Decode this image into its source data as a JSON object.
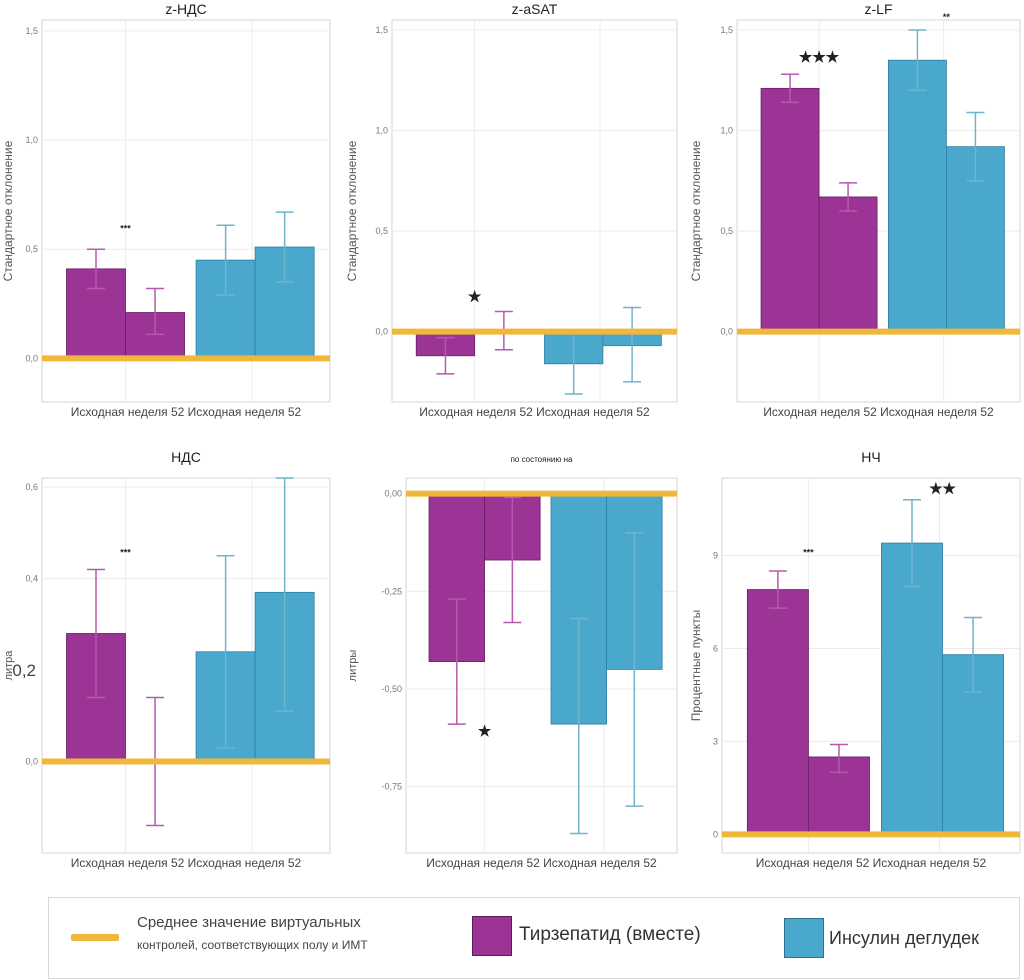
{
  "colors": {
    "tirzepatide": "#9b3494",
    "insulin": "#4aa8cd",
    "reference": "#f0b83a"
  },
  "legend": {
    "reference_line": "Среднее значение виртуальных",
    "reference_line_2": "контролей, соответствующих полу и ИМТ",
    "tirzepatide": "Тирзепатид (вместе)",
    "insulin": "Инсулин деглудек"
  },
  "chart_data": [
    {
      "type": "bar",
      "title": "z-НДС",
      "ylabel": "Стандартное отклонение",
      "ylim": [
        -0.2,
        1.55
      ],
      "yticks": [
        0,
        0.5,
        1.0,
        1.5
      ],
      "ytick_labels": [
        "0,0",
        "0,5",
        "1,0",
        "1,5"
      ],
      "x_label": "Исходная неделя 52 Исходная неделя 52",
      "reference_value": 0,
      "series": [
        {
          "name": "Тирзепатид (вместе)",
          "categories": [
            "Исходная",
            "неделя 52"
          ],
          "values": [
            0.41,
            0.21
          ],
          "err_low": [
            0.32,
            0.11
          ],
          "err_high": [
            0.5,
            0.32
          ]
        },
        {
          "name": "Инсулин деглудек",
          "categories": [
            "Исходная",
            "неделя 52"
          ],
          "values": [
            0.45,
            0.51
          ],
          "err_low": [
            0.29,
            0.35
          ],
          "err_high": [
            0.61,
            0.67
          ]
        }
      ],
      "annotations": [
        {
          "text": "***",
          "at_value": 0.58,
          "group": 0
        }
      ]
    },
    {
      "type": "bar",
      "title": "z-aSAT",
      "ylabel": "Стандартное отклонение",
      "ylim": [
        -0.35,
        1.55
      ],
      "yticks": [
        0,
        0.5,
        1.0,
        1.5
      ],
      "ytick_labels": [
        "0,0",
        "0,5",
        "1,0",
        "1,5"
      ],
      "x_label": "Исходная неделя 52 Исходная неделя 52",
      "reference_value": 0,
      "series": [
        {
          "name": "Тирзепатид (вместе)",
          "categories": [
            "Исходная",
            "неделя 52"
          ],
          "values": [
            -0.12,
            0
          ],
          "err_low": [
            -0.21,
            -0.09
          ],
          "err_high": [
            -0.03,
            0.1
          ]
        },
        {
          "name": "Инсулин деглудек",
          "categories": [
            "Исходная",
            "неделя 52"
          ],
          "values": [
            -0.16,
            -0.07
          ],
          "err_low": [
            -0.31,
            -0.25
          ],
          "err_high": [
            -0.01,
            0.12
          ]
        }
      ],
      "annotations": [
        {
          "text": "★",
          "at_value": 0.15,
          "group": 0
        }
      ]
    },
    {
      "type": "bar",
      "title": "z-LF",
      "ylabel": "Стандартное отклонение",
      "ylim": [
        -0.35,
        1.55
      ],
      "yticks": [
        0,
        0.5,
        1.0,
        1.5
      ],
      "ytick_labels": [
        "0,0",
        "0,5",
        "1,0",
        "1,5"
      ],
      "x_label": "Исходная неделя 52 Исходная неделя 52",
      "reference_value": 0,
      "series": [
        {
          "name": "Тирзепатид (вместе)",
          "categories": [
            "Исходная",
            "неделя 52"
          ],
          "values": [
            1.21,
            0.67
          ],
          "err_low": [
            1.14,
            0.6
          ],
          "err_high": [
            1.28,
            0.74
          ]
        },
        {
          "name": "Инсулин деглудек",
          "categories": [
            "Исходная",
            "неделя 52"
          ],
          "values": [
            1.35,
            0.92
          ],
          "err_low": [
            1.2,
            0.75
          ],
          "err_high": [
            1.5,
            1.09
          ]
        }
      ],
      "annotations": [
        {
          "text": "★★★",
          "at_value": 1.34,
          "group": 0
        },
        {
          "text": "**",
          "at_value": 1.55,
          "group": 1
        }
      ]
    },
    {
      "type": "bar",
      "title": "НДС",
      "ylabel": "литра",
      "ylim": [
        -0.2,
        0.62
      ],
      "yticks": [
        0,
        0.4,
        0.6
      ],
      "ytick_labels": [
        "0,0",
        "0,4",
        "0,6"
      ],
      "extra_tick_label": "0,2",
      "x_label": "Исходная неделя 52 Исходная неделя 52",
      "reference_value": 0,
      "series": [
        {
          "name": "Тирзепатид (вместе)",
          "categories": [
            "Исходная",
            "неделя 52"
          ],
          "values": [
            0.28,
            0
          ],
          "err_low": [
            0.14,
            -0.14
          ],
          "err_high": [
            0.42,
            0.14
          ]
        },
        {
          "name": "Инсулин деглудек",
          "categories": [
            "Исходная",
            "неделя 52"
          ],
          "values": [
            0.24,
            0.37
          ],
          "err_low": [
            0.03,
            0.11
          ],
          "err_high": [
            0.45,
            0.62
          ]
        }
      ],
      "annotations": [
        {
          "text": "***",
          "at_value": 0.45,
          "group": 0
        }
      ]
    },
    {
      "type": "bar",
      "title": "по состоянию на",
      "ylabel": "литры",
      "ylim": [
        -0.92,
        0.04
      ],
      "yticks": [
        0,
        -0.25,
        -0.5,
        -0.75
      ],
      "ytick_labels": [
        "0,00",
        "-0,25",
        "-0,50",
        "-0,75"
      ],
      "x_label": "Исходная неделя 52 Исходная неделя 52",
      "reference_value": 0,
      "series": [
        {
          "name": "Тирзепатид (вместе)",
          "categories": [
            "Исходная",
            "неделя 52"
          ],
          "values": [
            -0.43,
            -0.17
          ],
          "err_low": [
            -0.59,
            -0.33
          ],
          "err_high": [
            -0.27,
            -0.01
          ]
        },
        {
          "name": "Инсулин деглудек",
          "categories": [
            "Исходная",
            "неделя 52"
          ],
          "values": [
            -0.59,
            -0.45
          ],
          "err_low": [
            -0.87,
            -0.8
          ],
          "err_high": [
            -0.32,
            -0.1
          ]
        }
      ],
      "annotations": [
        {
          "text": "★",
          "at_value": -0.62,
          "group": 0
        }
      ]
    },
    {
      "type": "bar",
      "title": "НЧ",
      "ylabel": "Процентные пункты",
      "ylim": [
        -0.6,
        11.5
      ],
      "yticks": [
        0,
        3,
        6,
        9
      ],
      "ytick_labels": [
        "0",
        "3",
        "6",
        "9"
      ],
      "x_label": "Исходная неделя 52 Исходная неделя 52",
      "reference_value": 0,
      "series": [
        {
          "name": "Тирзепатид (вместе)",
          "categories": [
            "Исходная",
            "неделя 52"
          ],
          "values": [
            7.9,
            2.5
          ],
          "err_low": [
            7.3,
            2.0
          ],
          "err_high": [
            8.5,
            2.9
          ]
        },
        {
          "name": "Инсулин деглудек",
          "categories": [
            "Исходная",
            "неделя 52"
          ],
          "values": [
            9.4,
            5.8
          ],
          "err_low": [
            8.0,
            4.6
          ],
          "err_high": [
            10.8,
            7.0
          ]
        }
      ],
      "annotations": [
        {
          "text": "***",
          "at_value": 9.0,
          "group": 0
        },
        {
          "text": "★★",
          "at_value": 11.0,
          "group": 1
        }
      ]
    }
  ]
}
